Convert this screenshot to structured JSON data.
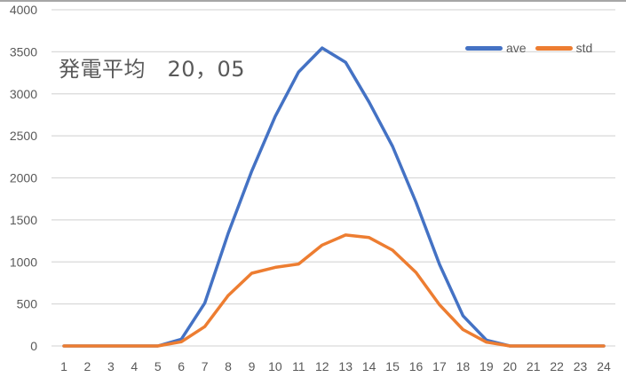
{
  "chart_data": {
    "type": "line",
    "title": "発電平均　20，05",
    "xlabel": "",
    "ylabel": "",
    "x": [
      1,
      2,
      3,
      4,
      5,
      6,
      7,
      8,
      9,
      10,
      11,
      12,
      13,
      14,
      15,
      16,
      17,
      18,
      19,
      20,
      21,
      22,
      23,
      24
    ],
    "ylim": [
      0,
      4000
    ],
    "yticks": [
      0,
      500,
      1000,
      1500,
      2000,
      2500,
      3000,
      3500,
      4000
    ],
    "grid": true,
    "legend_position": "top-right",
    "series": [
      {
        "name": "ave",
        "color": "#4472C4",
        "values": [
          0,
          0,
          0,
          0,
          0,
          80,
          510,
          1340,
          2080,
          2730,
          3260,
          3545,
          3375,
          2900,
          2375,
          1710,
          970,
          360,
          70,
          0,
          0,
          0,
          0,
          0
        ]
      },
      {
        "name": "std",
        "color": "#ED7D31",
        "values": [
          0,
          0,
          0,
          0,
          0,
          50,
          230,
          600,
          865,
          935,
          975,
          1200,
          1320,
          1290,
          1140,
          875,
          490,
          195,
          45,
          0,
          0,
          0,
          0,
          0
        ]
      }
    ]
  },
  "colors": {
    "grid": "#d9d9d9",
    "text": "#595959",
    "border": "#a6a6a6"
  }
}
